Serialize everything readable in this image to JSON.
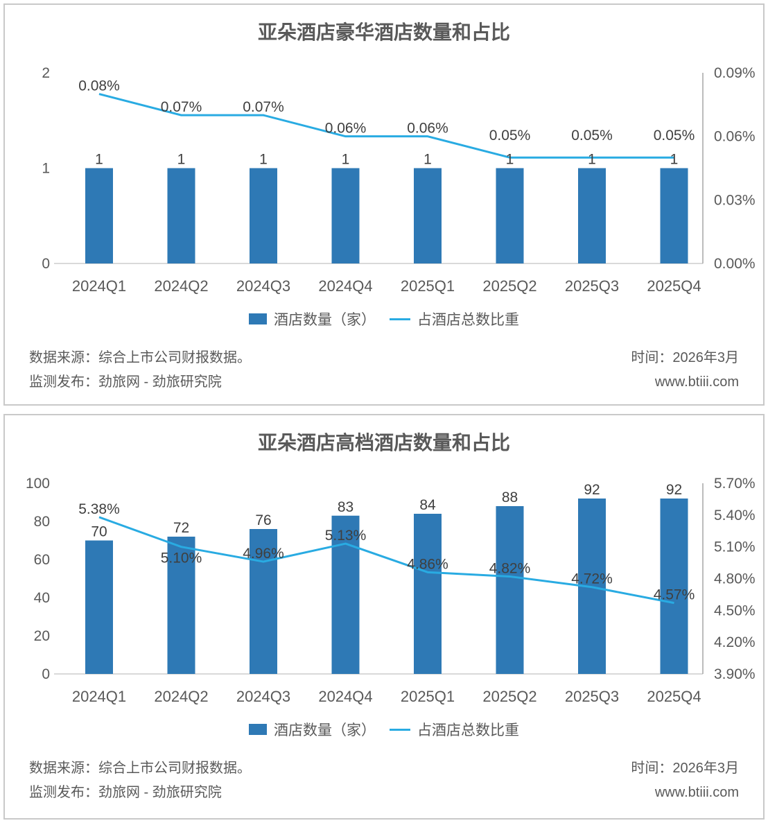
{
  "colors": {
    "bar": "#2E79B5",
    "line": "#29ABE2",
    "title_text": "#595959",
    "axis_text": "#595959",
    "data_label_text": "#3F3F3F",
    "footer_text": "#595959",
    "panel_border": "#C9C9C9",
    "x_axis_line": "#D9D9D9",
    "right_axis_line": "#A6A6A6"
  },
  "legend": {
    "bar_label": "酒店数量（家）",
    "line_label": "占酒店总数比重"
  },
  "footer": {
    "source": "数据来源：综合上市公司财报数据。",
    "publisher": "监测发布：劲旅网 - 劲旅研究院",
    "time": "时间：2026年3月",
    "website": "www.btiii.com"
  },
  "chart_data": [
    {
      "type": "bar+line",
      "title": "亚朵酒店豪华酒店数量和占比",
      "categories": [
        "2024Q1",
        "2024Q2",
        "2024Q3",
        "2024Q4",
        "2025Q1",
        "2025Q2",
        "2025Q3",
        "2025Q4"
      ],
      "series": [
        {
          "name": "酒店数量（家）",
          "type": "bar",
          "axis": "left",
          "values": [
            1,
            1,
            1,
            1,
            1,
            1,
            1,
            1
          ],
          "labels": [
            "1",
            "1",
            "1",
            "1",
            "1",
            "1",
            "1",
            "1"
          ]
        },
        {
          "name": "占酒店总数比重",
          "type": "line",
          "axis": "right",
          "values": [
            0.08,
            0.07,
            0.07,
            0.06,
            0.06,
            0.05,
            0.05,
            0.05
          ],
          "labels": [
            "0.08%",
            "0.07%",
            "0.07%",
            "0.06%",
            "0.06%",
            "0.05%",
            "0.05%",
            "0.05%"
          ],
          "label_sides": [
            "above",
            "above",
            "above",
            "above",
            "above",
            "above",
            "above",
            "above"
          ],
          "label_dy": [
            0,
            0,
            0,
            0,
            0,
            -20,
            -20,
            -20
          ]
        }
      ],
      "left_axis": {
        "min": 0,
        "max": 2,
        "tick_values": [
          0,
          1,
          2
        ],
        "tick_labels": [
          "0",
          "1",
          "2"
        ]
      },
      "right_axis": {
        "min": 0,
        "max": 0.09,
        "tick_values": [
          0,
          0.03,
          0.06,
          0.09
        ],
        "tick_labels": [
          "0.00%",
          "0.03%",
          "0.06%",
          "0.09%"
        ]
      },
      "legend_position": "bottom",
      "gridlines": false
    },
    {
      "type": "bar+line",
      "title": "亚朵酒店高档酒店数量和占比",
      "categories": [
        "2024Q1",
        "2024Q2",
        "2024Q3",
        "2024Q4",
        "2025Q1",
        "2025Q2",
        "2025Q3",
        "2025Q4"
      ],
      "series": [
        {
          "name": "酒店数量（家）",
          "type": "bar",
          "axis": "left",
          "values": [
            70,
            72,
            76,
            83,
            84,
            88,
            92,
            92
          ],
          "labels": [
            "70",
            "72",
            "76",
            "83",
            "84",
            "88",
            "92",
            "92"
          ]
        },
        {
          "name": "占酒店总数比重",
          "type": "line",
          "axis": "right",
          "values": [
            5.38,
            5.1,
            4.96,
            5.13,
            4.86,
            4.82,
            4.72,
            4.57
          ],
          "labels": [
            "5.38%",
            "5.10%",
            "4.96%",
            "5.13%",
            "4.86%",
            "4.82%",
            "4.72%",
            "4.57%"
          ],
          "label_sides": [
            "above",
            "below",
            "above",
            "above",
            "above",
            "above",
            "above",
            "above"
          ],
          "label_dy": [
            0,
            0,
            0,
            0,
            0,
            0,
            0,
            0
          ]
        }
      ],
      "left_axis": {
        "min": 0,
        "max": 100,
        "tick_values": [
          0,
          20,
          40,
          60,
          80,
          100
        ],
        "tick_labels": [
          "0",
          "20",
          "40",
          "60",
          "80",
          "100"
        ]
      },
      "right_axis": {
        "min": 3.9,
        "max": 5.7,
        "tick_values": [
          3.9,
          4.2,
          4.5,
          4.8,
          5.1,
          5.4,
          5.7
        ],
        "tick_labels": [
          "3.90%",
          "4.20%",
          "4.50%",
          "4.80%",
          "5.10%",
          "5.40%",
          "5.70%"
        ]
      },
      "legend_position": "bottom",
      "gridlines": false
    }
  ]
}
